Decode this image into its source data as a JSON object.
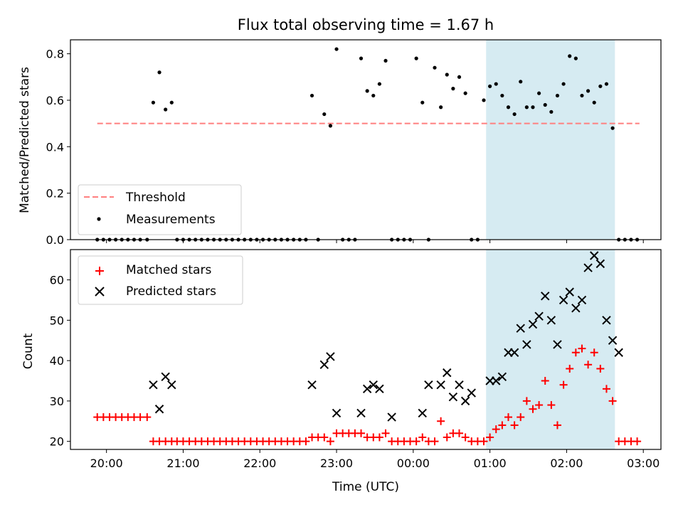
{
  "chart_data": {
    "type": "scatter",
    "title": "Flux total observing time = 1.67 h",
    "xlabel": "Time (UTC)",
    "x_axis": {
      "unit": "hours since 20:00 UTC",
      "range": [
        -0.47,
        7.23
      ],
      "ticks": [
        0,
        1,
        2,
        3,
        4,
        5,
        6,
        7
      ],
      "tick_labels": [
        "20:00",
        "21:00",
        "22:00",
        "23:00",
        "00:00",
        "01:00",
        "02:00",
        "03:00"
      ]
    },
    "highlight_span": {
      "from": 4.95,
      "to": 6.63,
      "color": "#add8e6"
    },
    "colors": {
      "threshold": "#ff7f7f",
      "measurements": "#000000",
      "matched": "#ff0000",
      "predicted": "#000000",
      "span": "#add8e6"
    },
    "top_panel": {
      "ylabel": "Matched/Predicted stars",
      "ylim": [
        0,
        0.86
      ],
      "yticks": [
        0.0,
        0.2,
        0.4,
        0.6,
        0.8
      ],
      "ytick_labels": [
        "0.0",
        "0.2",
        "0.4",
        "0.6",
        "0.8"
      ],
      "legend": {
        "location": "lower left",
        "threshold_label": "Threshold",
        "measurements_label": "Measurements"
      },
      "threshold": {
        "y": 0.5,
        "x_range": [
          -0.12,
          6.95
        ]
      },
      "measurements": {
        "x": [
          -0.12,
          -0.04,
          0.04,
          0.12,
          0.2,
          0.28,
          0.36,
          0.44,
          0.53,
          0.61,
          0.69,
          0.77,
          0.85,
          0.92,
          1.0,
          1.08,
          1.16,
          1.24,
          1.32,
          1.4,
          1.48,
          1.56,
          1.64,
          1.72,
          1.8,
          1.88,
          1.96,
          2.04,
          2.12,
          2.2,
          2.28,
          2.36,
          2.44,
          2.52,
          2.6,
          2.68,
          2.76,
          2.84,
          2.92,
          3.0,
          3.08,
          3.16,
          3.24,
          3.32,
          3.4,
          3.48,
          3.56,
          3.64,
          3.72,
          3.8,
          3.88,
          3.96,
          4.04,
          4.12,
          4.2,
          4.28,
          4.36,
          4.44,
          4.52,
          4.6,
          4.68,
          4.76,
          4.84,
          4.92,
          5.0,
          5.08,
          5.16,
          5.24,
          5.32,
          5.4,
          5.48,
          5.56,
          5.64,
          5.72,
          5.8,
          5.88,
          5.96,
          6.04,
          6.12,
          6.2,
          6.28,
          6.36,
          6.44,
          6.52,
          6.6,
          6.68,
          6.76,
          6.84,
          6.92
        ],
        "y": [
          0,
          0,
          0,
          0,
          0,
          0,
          0,
          0,
          0,
          0.59,
          0.72,
          0.56,
          0.59,
          0,
          0,
          0,
          0,
          0,
          0,
          0,
          0,
          0,
          0,
          0,
          0,
          0,
          0,
          0,
          0,
          0,
          0,
          0,
          0,
          0,
          0,
          0.62,
          0,
          0.54,
          0.49,
          0.82,
          0,
          0,
          0,
          0.78,
          0.64,
          0.62,
          0.67,
          0.77,
          0,
          0,
          0,
          0,
          0.78,
          0.59,
          0,
          0.74,
          0.57,
          0.71,
          0.65,
          0.7,
          0.63,
          0,
          0,
          0.6,
          0.66,
          0.67,
          0.62,
          0.57,
          0.54,
          0.68,
          0.57,
          0.57,
          0.63,
          0.58,
          0.55,
          0.62,
          0.67,
          0.79,
          0.78,
          0.62,
          0.64,
          0.59,
          0.66,
          0.67,
          0.48,
          0,
          0,
          0,
          0
        ]
      }
    },
    "bottom_panel": {
      "ylabel": "Count",
      "ylim": [
        18,
        67.5
      ],
      "yticks": [
        20,
        30,
        40,
        50,
        60
      ],
      "ytick_labels": [
        "20",
        "30",
        "40",
        "50",
        "60"
      ],
      "legend": {
        "location": "upper left",
        "matched_label": "Matched stars",
        "predicted_label": "Predicted stars"
      },
      "matched": {
        "x": [
          -0.12,
          -0.04,
          0.04,
          0.12,
          0.2,
          0.28,
          0.36,
          0.44,
          0.53,
          0.61,
          0.69,
          0.77,
          0.85,
          0.92,
          1.0,
          1.08,
          1.16,
          1.24,
          1.32,
          1.4,
          1.48,
          1.56,
          1.64,
          1.72,
          1.8,
          1.88,
          1.96,
          2.04,
          2.12,
          2.2,
          2.28,
          2.36,
          2.44,
          2.52,
          2.6,
          2.68,
          2.76,
          2.84,
          2.92,
          3.0,
          3.08,
          3.16,
          3.24,
          3.32,
          3.4,
          3.48,
          3.56,
          3.64,
          3.72,
          3.8,
          3.88,
          3.96,
          4.04,
          4.12,
          4.2,
          4.28,
          4.36,
          4.44,
          4.52,
          4.6,
          4.68,
          4.76,
          4.84,
          4.92,
          5.0,
          5.08,
          5.16,
          5.24,
          5.32,
          5.4,
          5.48,
          5.56,
          5.64,
          5.72,
          5.8,
          5.88,
          5.96,
          6.04,
          6.12,
          6.2,
          6.28,
          6.36,
          6.44,
          6.52,
          6.6,
          6.68,
          6.76,
          6.84,
          6.92
        ],
        "y": [
          26,
          26,
          26,
          26,
          26,
          26,
          26,
          26,
          26,
          20,
          20,
          20,
          20,
          20,
          20,
          20,
          20,
          20,
          20,
          20,
          20,
          20,
          20,
          20,
          20,
          20,
          20,
          20,
          20,
          20,
          20,
          20,
          20,
          20,
          20,
          21,
          21,
          21,
          20,
          22,
          22,
          22,
          22,
          22,
          21,
          21,
          21,
          22,
          20,
          20,
          20,
          20,
          20,
          21,
          20,
          20,
          25,
          21,
          22,
          22,
          21,
          20,
          20,
          20,
          21,
          23,
          24,
          26,
          24,
          26,
          30,
          28,
          29,
          35,
          29,
          24,
          34,
          38,
          42,
          43,
          39,
          42,
          38,
          33,
          30,
          20,
          20,
          20,
          20
        ]
      },
      "predicted": {
        "x": [
          0.61,
          0.69,
          0.77,
          0.85,
          2.68,
          2.84,
          2.92,
          3.0,
          3.32,
          3.4,
          3.48,
          3.56,
          3.72,
          4.12,
          4.2,
          4.36,
          4.44,
          4.52,
          4.6,
          4.68,
          4.76,
          5.0,
          5.08,
          5.16,
          5.24,
          5.32,
          5.4,
          5.48,
          5.56,
          5.64,
          5.72,
          5.8,
          5.88,
          5.96,
          6.04,
          6.12,
          6.2,
          6.28,
          6.36,
          6.44,
          6.52,
          6.6,
          6.68
        ],
        "y": [
          34,
          28,
          36,
          34,
          34,
          39,
          41,
          27,
          27,
          33,
          34,
          33,
          26,
          27,
          34,
          34,
          37,
          31,
          34,
          30,
          32,
          35,
          35,
          36,
          42,
          42,
          48,
          44,
          49,
          51,
          56,
          50,
          44,
          55,
          57,
          53,
          55,
          63,
          66,
          64,
          50,
          45,
          42
        ]
      }
    }
  }
}
